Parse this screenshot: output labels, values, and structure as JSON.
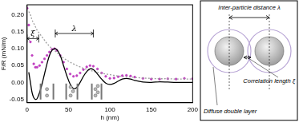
{
  "chart_data": {
    "type": "line",
    "x_label": "h (nm)",
    "y_label": "F/R (mN/m)",
    "x": [
      0,
      2,
      4,
      6,
      8,
      10,
      12,
      15,
      18,
      21,
      24,
      27,
      30,
      33,
      36,
      40,
      44,
      48,
      52,
      56,
      60,
      64,
      68,
      72,
      76,
      80,
      85,
      90,
      95,
      100,
      105,
      110,
      115,
      120,
      125,
      130,
      140,
      150,
      160,
      170,
      180,
      190,
      200
    ],
    "series": [
      {
        "color": "#c03ec0",
        "marker": "circle",
        "line_style": "none",
        "type": "scatter",
        "values": [
          0.22,
          0.17,
          0.12,
          0.08,
          0.055,
          0.045,
          0.045,
          0.05,
          0.06,
          0.07,
          0.08,
          0.09,
          0.098,
          0.1,
          0.095,
          0.08,
          0.06,
          0.04,
          0.025,
          0.018,
          0.02,
          0.028,
          0.038,
          0.046,
          0.05,
          0.048,
          0.04,
          0.028,
          0.018,
          0.012,
          0.013,
          0.017,
          0.02,
          0.021,
          0.019,
          0.016,
          0.012,
          0.01,
          0.01,
          0.011,
          0.01,
          0.012,
          0.011
        ]
      },
      {
        "color": "#000000",
        "line_style": "solid",
        "type": "line",
        "values": [
          null,
          0.03,
          0.0,
          -0.03,
          -0.045,
          -0.05,
          -0.048,
          -0.03,
          -0.005,
          0.025,
          0.055,
          0.08,
          0.095,
          0.1,
          0.097,
          0.08,
          0.05,
          0.02,
          -0.005,
          -0.018,
          -0.015,
          0.0,
          0.018,
          0.032,
          0.04,
          0.038,
          0.025,
          0.01,
          -0.002,
          -0.006,
          -0.003,
          0.004,
          0.01,
          0.012,
          0.01,
          0.006,
          0.001,
          0.0,
          0.002,
          0.001,
          0.0,
          0.0,
          0.0
        ]
      },
      {
        "color": "#a0a0a0",
        "line_style": "dotted",
        "type": "line",
        "values": [
          null,
          0.21,
          0.2,
          0.185,
          0.175,
          0.165,
          0.155,
          0.145,
          0.135,
          0.125,
          0.115,
          0.108,
          0.1,
          0.095,
          0.088,
          0.08,
          0.072,
          0.066,
          0.06,
          0.055,
          0.05,
          0.046,
          0.042,
          0.039,
          0.036,
          0.033,
          0.03,
          0.027,
          0.025,
          0.023,
          0.021,
          0.019,
          0.018,
          0.017,
          0.016,
          0.015,
          0.013,
          0.012,
          0.011,
          0.011,
          0.01,
          0.01,
          0.01
        ]
      }
    ],
    "xlim": [
      0,
      200
    ],
    "xticks": [
      0,
      50,
      100,
      150,
      200
    ],
    "ylim": [
      -0.06,
      0.23
    ],
    "yticks": [
      {
        "value": -0.05,
        "label": "-0.05"
      },
      {
        "value": 0,
        "label": "0.00"
      },
      {
        "value": 0.05,
        "label": "0.05"
      },
      {
        "value": 0.1,
        "label": "0.10"
      },
      {
        "value": 0.15,
        "label": "0.15"
      },
      {
        "value": 0.2,
        "label": "0.20"
      }
    ],
    "grid": false,
    "annotations": [
      {
        "text": "ξ",
        "x": [
          0,
          14
        ],
        "y": 0.13
      },
      {
        "text": "λ",
        "x": [
          34,
          80
        ],
        "y": 0.145
      }
    ]
  },
  "diagram": {
    "labels": {
      "top": "Inter-particle distance λ",
      "right": "Correlation length ξ",
      "bottom": "Diffuse double layer"
    }
  }
}
